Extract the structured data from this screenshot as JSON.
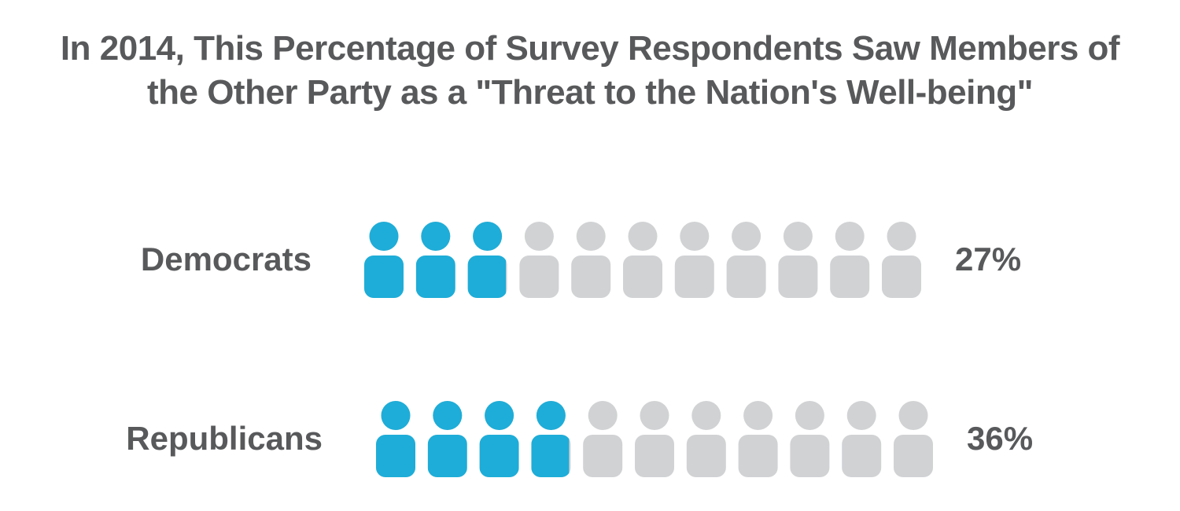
{
  "chart_data": {
    "type": "pictogram",
    "title": {
      "line1": "In 2014, This Percentage of Survey Respondents Saw Members of",
      "line2": "the Other Party as a \"Threat to the Nation's Well-being\""
    },
    "icons_per_row": 11,
    "icon_name": "person-icon",
    "units": "%",
    "categories": [
      "Democrats",
      "Republicans"
    ],
    "values": [
      27,
      36
    ],
    "value_labels": [
      "27%",
      "36%"
    ],
    "colors": {
      "filled": "#1eadd8",
      "empty": "#d1d2d4",
      "text": "#58595b"
    }
  }
}
